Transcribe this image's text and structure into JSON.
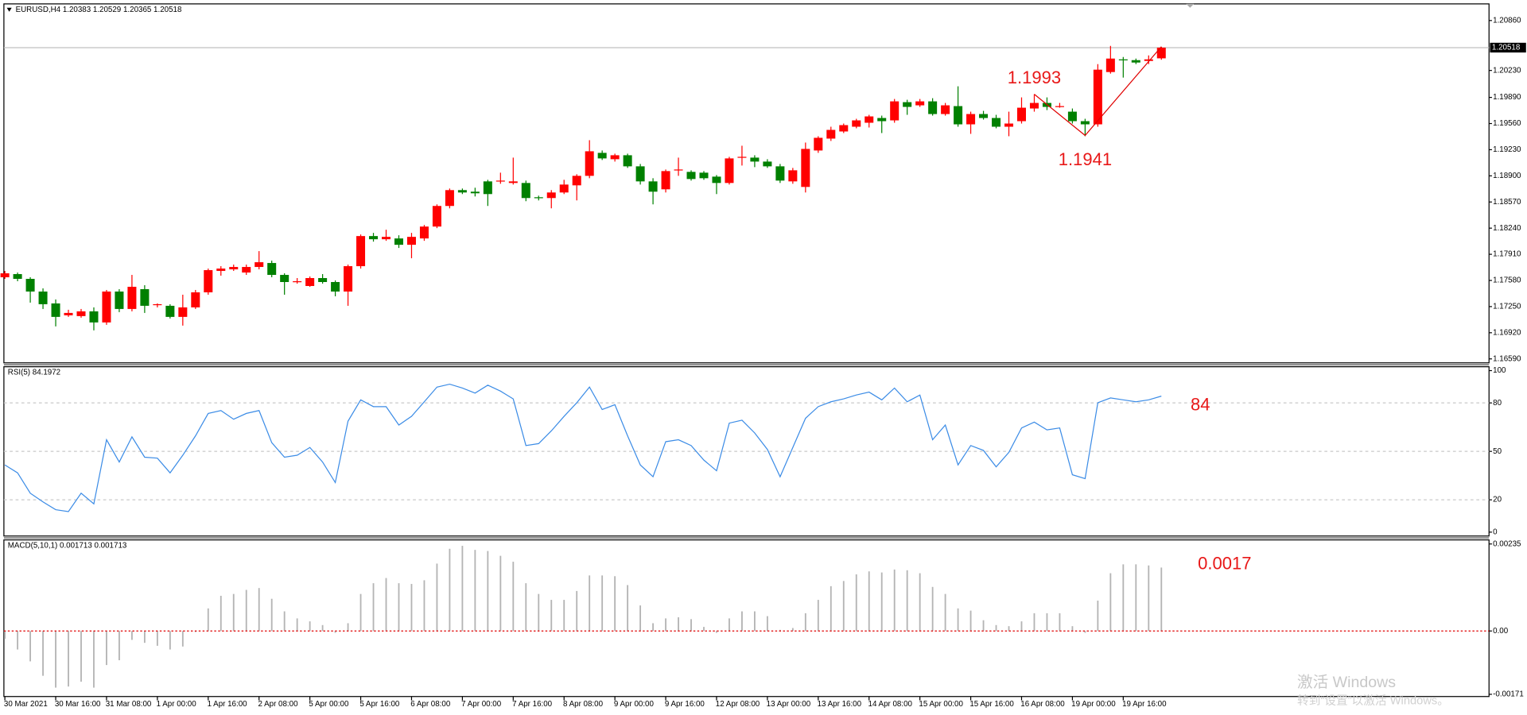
{
  "chart_data": [
    {
      "type": "candlestick",
      "title": "EURUSD,H4  1.20383 1.20529 1.20365 1.20518",
      "up_color": "#ff0000",
      "down_color": "#008000",
      "categories": [
        "30 Mar 2021",
        null,
        null,
        null,
        "30 Mar 16:00",
        null,
        null,
        null,
        "31 Mar 08:00",
        null,
        null,
        null,
        "1 Apr 00:00",
        null,
        null,
        null,
        "1 Apr 16:00",
        null,
        null,
        null,
        "2 Apr 08:00",
        null,
        null,
        null,
        "5 Apr 00:00",
        null,
        null,
        null,
        "5 Apr 16:00",
        null,
        null,
        null,
        "6 Apr 08:00",
        null,
        null,
        null,
        "7 Apr 00:00",
        null,
        null,
        null,
        "7 Apr 16:00",
        null,
        null,
        null,
        "8 Apr 08:00",
        null,
        null,
        null,
        "9 Apr 00:00",
        null,
        null,
        null,
        "9 Apr 16:00",
        null,
        null,
        null,
        "12 Apr 08:00",
        null,
        null,
        null,
        "13 Apr 00:00",
        null,
        null,
        null,
        "13 Apr 16:00",
        null,
        null,
        null,
        "14 Apr 08:00",
        null,
        null,
        null,
        "15 Apr 00:00",
        null,
        null,
        null,
        "15 Apr 16:00",
        null,
        null,
        null,
        "16 Apr 08:00",
        null,
        null,
        null,
        "19 Apr 00:00",
        null,
        null,
        null,
        "19 Apr 16:00",
        null,
        null,
        null
      ],
      "open": [
        1.1762,
        1.1766,
        1.176,
        1.1744,
        1.1729,
        1.1714,
        1.1713,
        1.1719,
        1.1705,
        1.1744,
        1.1722,
        1.1747,
        1.1727,
        1.1726,
        1.1712,
        1.1724,
        1.1743,
        1.177,
        1.1772,
        1.1768,
        1.1775,
        1.178,
        1.1765,
        1.1756,
        1.1751,
        1.1761,
        1.1756,
        1.1744,
        1.1776,
        1.1814,
        1.181,
        1.1811,
        1.1803,
        1.1811,
        1.1826,
        1.1852,
        1.1872,
        1.187,
        1.1883,
        1.1883,
        1.1881,
        1.1881,
        1.1863,
        1.1862,
        1.1869,
        1.1878,
        1.189,
        1.1919,
        1.1911,
        1.1916,
        1.1902,
        1.1883,
        1.1873,
        1.1897,
        1.1895,
        1.1894,
        1.1889,
        1.1881,
        1.1913,
        1.1913,
        1.1908,
        1.1902,
        1.1883,
        1.1876,
        1.1922,
        1.1937,
        1.1946,
        1.1952,
        1.1957,
        1.1963,
        1.196,
        1.1983,
        1.1979,
        1.1984,
        1.1968,
        1.1978,
        1.1955,
        1.1968,
        1.1963,
        1.1952,
        1.1959,
        1.1975,
        1.1982,
        1.1977,
        1.1971,
        1.1959,
        1.1955,
        1.2021,
        1.2037,
        1.2036,
        1.2035,
        1.20383
      ],
      "high": [
        1.177,
        1.1768,
        1.1762,
        1.1748,
        1.1734,
        1.1721,
        1.1722,
        1.1724,
        1.1746,
        1.1747,
        1.1765,
        1.1752,
        1.1729,
        1.1728,
        1.174,
        1.1746,
        1.1773,
        1.1776,
        1.1778,
        1.1778,
        1.1795,
        1.1783,
        1.1767,
        1.1761,
        1.1763,
        1.1766,
        1.1758,
        1.1778,
        1.1816,
        1.1818,
        1.1822,
        1.1815,
        1.1818,
        1.1828,
        1.1854,
        1.1874,
        1.1874,
        1.1875,
        1.1885,
        1.1894,
        1.1913,
        1.1884,
        1.1865,
        1.1872,
        1.1885,
        1.1892,
        1.1935,
        1.1922,
        1.1918,
        1.1918,
        1.1905,
        1.1887,
        1.1898,
        1.1913,
        1.1897,
        1.1896,
        1.1891,
        1.1914,
        1.1928,
        1.1916,
        1.1911,
        1.1905,
        1.19,
        1.1932,
        1.194,
        1.1952,
        1.1956,
        1.1962,
        1.1967,
        1.1966,
        1.1987,
        1.1986,
        1.1987,
        1.1988,
        1.1982,
        1.2003,
        1.1971,
        1.1972,
        1.1967,
        1.1971,
        1.1989,
        1.1993,
        1.1989,
        1.1982,
        1.1975,
        1.1962,
        1.2031,
        1.2054,
        1.204,
        1.2038,
        1.2042,
        1.20529
      ],
      "low": [
        1.176,
        1.1757,
        1.173,
        1.1722,
        1.17,
        1.1712,
        1.1711,
        1.1695,
        1.1702,
        1.1718,
        1.1719,
        1.1717,
        1.1724,
        1.171,
        1.1701,
        1.1722,
        1.174,
        1.1764,
        1.177,
        1.1765,
        1.1772,
        1.1762,
        1.174,
        1.1754,
        1.175,
        1.1754,
        1.1738,
        1.1726,
        1.1773,
        1.1807,
        1.1808,
        1.1799,
        1.1786,
        1.1808,
        1.1824,
        1.1849,
        1.1867,
        1.1864,
        1.1852,
        1.188,
        1.1879,
        1.1858,
        1.1859,
        1.1849,
        1.1867,
        1.1859,
        1.1887,
        1.191,
        1.1908,
        1.19,
        1.1879,
        1.1854,
        1.1869,
        1.189,
        1.1884,
        1.1885,
        1.1867,
        1.1879,
        1.1903,
        1.1901,
        1.19,
        1.1881,
        1.188,
        1.1869,
        1.1919,
        1.1934,
        1.1944,
        1.195,
        1.1951,
        1.1944,
        1.1957,
        1.1967,
        1.1977,
        1.1966,
        1.1966,
        1.1952,
        1.1943,
        1.1961,
        1.195,
        1.194,
        1.1956,
        1.1971,
        1.1973,
        1.1976,
        1.1956,
        1.194,
        1.1952,
        1.2019,
        1.2014,
        1.2031,
        1.2031,
        1.20365
      ],
      "close": [
        1.1767,
        1.176,
        1.1744,
        1.1728,
        1.1712,
        1.1717,
        1.1719,
        1.1705,
        1.1744,
        1.1722,
        1.175,
        1.1726,
        1.1728,
        1.1712,
        1.1724,
        1.1743,
        1.1771,
        1.1773,
        1.1775,
        1.1775,
        1.1781,
        1.1765,
        1.1756,
        1.1757,
        1.1761,
        1.1756,
        1.1744,
        1.1776,
        1.1814,
        1.181,
        1.1813,
        1.1803,
        1.1813,
        1.1826,
        1.1852,
        1.1872,
        1.1869,
        1.1868,
        1.1867,
        1.1884,
        1.1883,
        1.1862,
        1.1862,
        1.1869,
        1.1879,
        1.189,
        1.1921,
        1.1912,
        1.1916,
        1.1902,
        1.1883,
        1.187,
        1.1896,
        1.1898,
        1.1886,
        1.1887,
        1.1881,
        1.1912,
        1.1914,
        1.1908,
        1.1902,
        1.1884,
        1.1897,
        1.1924,
        1.1938,
        1.1948,
        1.1954,
        1.196,
        1.1965,
        1.1959,
        1.1984,
        1.1977,
        1.1984,
        1.1968,
        1.1979,
        1.1955,
        1.1968,
        1.1963,
        1.1952,
        1.1956,
        1.1976,
        1.1982,
        1.1977,
        1.1978,
        1.1959,
        1.1955,
        1.2024,
        1.2038,
        1.2036,
        1.2033,
        1.2037,
        1.20518
      ],
      "ylim": [
        1.1654,
        1.2107
      ],
      "yticks": [
        {
          "value": 1.2086,
          "label": "1.20860"
        },
        {
          "value": 1.2023,
          "label": "1.20230"
        },
        {
          "value": 1.1989,
          "label": "1.19890"
        },
        {
          "value": 1.1956,
          "label": "1.19560"
        },
        {
          "value": 1.1923,
          "label": "1.19230"
        },
        {
          "value": 1.189,
          "label": "1.18900"
        },
        {
          "value": 1.1857,
          "label": "1.18570"
        },
        {
          "value": 1.1824,
          "label": "1.18240"
        },
        {
          "value": 1.1791,
          "label": "1.17910"
        },
        {
          "value": 1.1758,
          "label": "1.17580"
        },
        {
          "value": 1.1725,
          "label": "1.17250"
        },
        {
          "value": 1.1692,
          "label": "1.16920"
        },
        {
          "value": 1.1659,
          "label": "1.16590"
        }
      ],
      "current_price": {
        "value": 1.20518,
        "label": "1.20518"
      },
      "zigzag": {
        "color": "#e00000",
        "x": [
          81,
          85,
          91
        ],
        "values": [
          1.1993,
          1.1941,
          1.2053
        ]
      },
      "annotations": [
        {
          "text": "1.1993"
        },
        {
          "text": "1.1941"
        }
      ]
    },
    {
      "type": "line",
      "title": "RSI(5) 84.1972",
      "color": "#3c8ce6",
      "values": [
        41.6,
        36.7,
        24.1,
        18.7,
        13.9,
        12.7,
        24.1,
        17.5,
        57.2,
        43.4,
        59.0,
        46.4,
        45.8,
        36.7,
        47.6,
        59.6,
        73.5,
        75.3,
        69.9,
        73.5,
        75.3,
        55.4,
        46.4,
        47.6,
        52.4,
        43.4,
        30.7,
        68.7,
        81.9,
        77.7,
        77.7,
        66.3,
        71.7,
        80.7,
        89.8,
        91.6,
        89.2,
        86.1,
        91.0,
        87.3,
        82.5,
        53.6,
        54.8,
        62.7,
        71.7,
        80.1,
        89.8,
        75.9,
        78.9,
        59.6,
        41.6,
        34.3,
        56.0,
        57.2,
        53.6,
        44.6,
        38.0,
        67.5,
        69.3,
        61.4,
        51.2,
        34.3,
        52.4,
        70.5,
        77.7,
        80.7,
        82.5,
        84.9,
        86.7,
        81.9,
        89.2,
        80.7,
        84.9,
        57.2,
        66.3,
        41.6,
        53.6,
        50.6,
        40.4,
        49.4,
        64.5,
        68.1,
        63.3,
        64.5,
        35.5,
        33.1,
        80.1,
        83.1,
        81.9,
        80.7,
        81.9,
        84.1972
      ],
      "ylim": [
        -2.4,
        102.4
      ],
      "yticks": [
        0,
        20,
        50,
        80,
        100
      ],
      "levels": [
        20,
        50,
        80
      ],
      "annotation": "84"
    },
    {
      "type": "histogram",
      "title": "MACD(5,10,1) 0.001713 0.001713",
      "color": "#b4b4b4",
      "zero_color": "#e00000",
      "values": [
        -0.00021,
        -0.0005,
        -0.00082,
        -0.00121,
        -0.00153,
        -0.0015,
        -0.00137,
        -0.00153,
        -0.00092,
        -0.00079,
        -0.00024,
        -0.00032,
        -0.0004,
        -0.0005,
        -0.00042,
        -3e-05,
        0.00061,
        0.00095,
        0.001,
        0.00111,
        0.00116,
        0.00087,
        0.00053,
        0.00034,
        0.00026,
        0.00016,
        -5e-05,
        0.00021,
        0.001,
        0.00129,
        0.00143,
        0.00129,
        0.00127,
        0.00137,
        0.00182,
        0.00222,
        0.0023,
        0.00219,
        0.00216,
        0.00203,
        0.00187,
        0.00129,
        0.001,
        0.00084,
        0.00084,
        0.00108,
        0.0015,
        0.0015,
        0.00148,
        0.00124,
        0.00069,
        0.00021,
        0.00034,
        0.00037,
        0.00032,
        0.00011,
        -5e-05,
        0.00034,
        0.00053,
        0.00053,
        0.0004,
        3e-05,
        8e-05,
        0.00048,
        0.00084,
        0.00121,
        0.00135,
        0.00153,
        0.00161,
        0.00158,
        0.00166,
        0.00164,
        0.00156,
        0.00119,
        0.001,
        0.00061,
        0.00055,
        0.00029,
        0.00016,
        0.00013,
        0.00026,
        0.00048,
        0.00048,
        0.00048,
        0.00013,
        -5e-05,
        0.00082,
        0.00156,
        0.0018,
        0.0018,
        0.00177,
        0.001713
      ],
      "ylim": [
        -0.00177,
        0.00246
      ],
      "yticks": [
        0.00235,
        {
          "value": 0,
          "label": "0.00"
        },
        -0.00171
      ],
      "annotation": "0.0017"
    }
  ],
  "watermark": {
    "title": "激活 Windows",
    "subtitle": "转到“设置”以激活 Windows。"
  }
}
